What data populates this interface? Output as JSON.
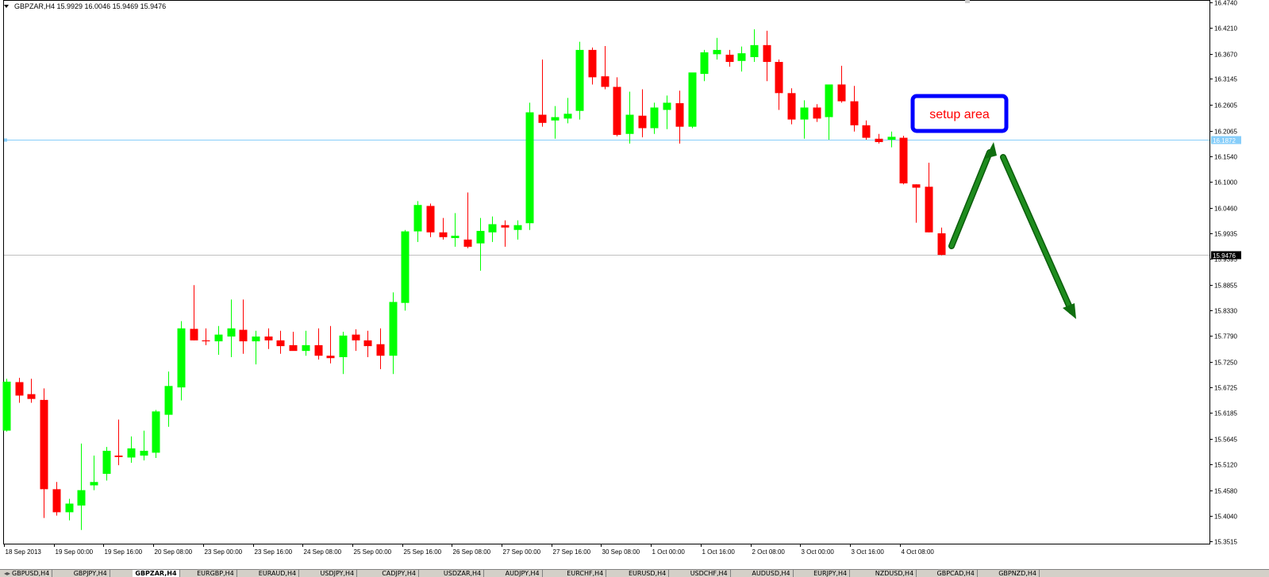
{
  "header": {
    "menu_icon": "triangle-down-icon",
    "text": "GBPZAR,H4  15.9929 16.0046 15.9469 15.9476"
  },
  "annotation": {
    "label": "setup area",
    "label_color": "#ff0000",
    "box_border_color": "#0000ff",
    "arrow_color": "#107a10"
  },
  "colors": {
    "bull": "#00ff00",
    "bear": "#ff0000",
    "resistance_line": "#87cefa",
    "bid_line": "#c0c0c0",
    "axis": "#000000",
    "axis_text": "#000000"
  },
  "chart_data": {
    "type": "candlestick",
    "symbol": "GBPZAR",
    "timeframe": "H4",
    "ohlc_header": {
      "open": 15.9929,
      "high": 16.0046,
      "low": 15.9469,
      "close": 15.9476
    },
    "ylim": [
      15.3515,
      16.474
    ],
    "y_ticks": [
      "16.4740",
      "16.4210",
      "16.3670",
      "16.3145",
      "16.2605",
      "16.2065",
      "16.1540",
      "16.1000",
      "16.0460",
      "15.9935",
      "15.9395",
      "15.8855",
      "15.8330",
      "15.7790",
      "15.7250",
      "15.6725",
      "15.6185",
      "15.5645",
      "15.5120",
      "15.4580",
      "15.4040",
      "15.3515"
    ],
    "x_labels": [
      "18 Sep 2013",
      "19 Sep 00:00",
      "19 Sep 16:00",
      "20 Sep 08:00",
      "23 Sep 00:00",
      "23 Sep 16:00",
      "24 Sep 08:00",
      "25 Sep 00:00",
      "25 Sep 16:00",
      "26 Sep 08:00",
      "27 Sep 00:00",
      "27 Sep 16:00",
      "30 Sep 08:00",
      "1 Oct 00:00",
      "1 Oct 16:00",
      "2 Oct 08:00",
      "3 Oct 00:00",
      "3 Oct 16:00",
      "4 Oct 08:00"
    ],
    "horizontal_lines": [
      {
        "name": "level",
        "value": 16.1872,
        "label": "16.1872"
      },
      {
        "name": "bid",
        "value": 15.9476,
        "label": "15.9476"
      }
    ],
    "candles": [
      [
        15.582,
        15.69,
        15.58,
        15.684
      ],
      [
        15.683,
        15.692,
        15.64,
        15.655
      ],
      [
        15.658,
        15.69,
        15.64,
        15.648
      ],
      [
        15.646,
        15.67,
        15.4,
        15.46
      ],
      [
        15.46,
        15.475,
        15.405,
        15.412
      ],
      [
        15.412,
        15.44,
        15.395,
        15.43
      ],
      [
        15.426,
        15.555,
        15.375,
        15.458
      ],
      [
        15.468,
        15.53,
        15.458,
        15.475
      ],
      [
        15.492,
        15.548,
        15.478,
        15.54
      ],
      [
        15.53,
        15.605,
        15.51,
        15.527
      ],
      [
        15.526,
        15.57,
        15.515,
        15.545
      ],
      [
        15.53,
        15.582,
        15.52,
        15.54
      ],
      [
        15.536,
        15.625,
        15.525,
        15.622
      ],
      [
        15.615,
        15.705,
        15.59,
        15.675
      ],
      [
        15.672,
        15.81,
        15.645,
        15.795
      ],
      [
        15.794,
        15.885,
        15.77,
        15.77
      ],
      [
        15.77,
        15.795,
        15.76,
        15.768
      ],
      [
        15.768,
        15.8,
        15.74,
        15.782
      ],
      [
        15.778,
        15.855,
        15.735,
        15.795
      ],
      [
        15.792,
        15.855,
        15.742,
        15.768
      ],
      [
        15.768,
        15.79,
        15.72,
        15.778
      ],
      [
        15.778,
        15.795,
        15.752,
        15.77
      ],
      [
        15.77,
        15.79,
        15.742,
        15.758
      ],
      [
        15.76,
        15.788,
        15.75,
        15.748
      ],
      [
        15.748,
        15.79,
        15.738,
        15.76
      ],
      [
        15.76,
        15.795,
        15.73,
        15.738
      ],
      [
        15.738,
        15.8,
        15.722,
        15.733
      ],
      [
        15.735,
        15.788,
        15.7,
        15.78
      ],
      [
        15.782,
        15.793,
        15.748,
        15.77
      ],
      [
        15.77,
        15.79,
        15.735,
        15.758
      ],
      [
        15.762,
        15.795,
        15.71,
        15.738
      ],
      [
        15.738,
        15.87,
        15.7,
        15.85
      ],
      [
        15.848,
        16.0,
        15.832,
        15.997
      ],
      [
        15.997,
        16.06,
        15.975,
        16.052
      ],
      [
        16.05,
        16.055,
        15.985,
        15.995
      ],
      [
        15.995,
        16.025,
        15.98,
        15.985
      ],
      [
        15.983,
        16.035,
        15.965,
        15.988
      ],
      [
        15.98,
        16.078,
        15.962,
        15.965
      ],
      [
        15.972,
        16.025,
        15.915,
        15.998
      ],
      [
        15.995,
        16.028,
        15.975,
        16.012
      ],
      [
        16.01,
        16.02,
        15.965,
        16.005
      ],
      [
        16.0,
        16.02,
        15.98,
        16.01
      ],
      [
        16.014,
        16.265,
        16.0,
        16.245
      ],
      [
        16.24,
        16.355,
        16.215,
        16.223
      ],
      [
        16.228,
        16.258,
        16.19,
        16.235
      ],
      [
        16.232,
        16.275,
        16.222,
        16.242
      ],
      [
        16.248,
        16.392,
        16.23,
        16.375
      ],
      [
        16.375,
        16.38,
        16.303,
        16.318
      ],
      [
        16.32,
        16.383,
        16.293,
        16.298
      ],
      [
        16.298,
        16.318,
        16.195,
        16.198
      ],
      [
        16.2,
        16.288,
        16.18,
        16.24
      ],
      [
        16.238,
        16.293,
        16.193,
        16.212
      ],
      [
        16.212,
        16.265,
        16.2,
        16.255
      ],
      [
        16.25,
        16.28,
        16.21,
        16.265
      ],
      [
        16.264,
        16.29,
        16.18,
        16.215
      ],
      [
        16.215,
        16.32,
        16.212,
        16.328
      ],
      [
        16.325,
        16.375,
        16.31,
        16.37
      ],
      [
        16.366,
        16.4,
        16.355,
        16.375
      ],
      [
        16.365,
        16.375,
        16.34,
        16.35
      ],
      [
        16.352,
        16.382,
        16.33,
        16.368
      ],
      [
        16.36,
        16.418,
        16.35,
        16.385
      ],
      [
        16.385,
        16.415,
        16.31,
        16.35
      ],
      [
        16.35,
        16.355,
        16.25,
        16.285
      ],
      [
        16.285,
        16.295,
        16.22,
        16.23
      ],
      [
        16.23,
        16.27,
        16.19,
        16.255
      ],
      [
        16.255,
        16.262,
        16.225,
        16.232
      ],
      [
        16.235,
        16.3,
        16.188,
        16.303
      ],
      [
        16.303,
        16.342,
        16.265,
        16.268
      ],
      [
        16.268,
        16.3,
        16.205,
        16.218
      ],
      [
        16.218,
        16.228,
        16.188,
        16.192
      ],
      [
        16.19,
        16.2,
        16.18,
        16.183
      ],
      [
        16.188,
        16.205,
        16.172,
        16.194
      ],
      [
        16.192,
        16.196,
        16.095,
        16.097
      ],
      [
        16.095,
        16.095,
        16.015,
        16.088
      ],
      [
        16.09,
        16.14,
        15.995,
        15.995
      ],
      [
        15.993,
        16.005,
        15.947,
        15.948
      ]
    ]
  },
  "tabs": [
    "GBPUSD,H4",
    "GBPJPY,H4",
    "GBPZAR,H4",
    "EURGBP,H4",
    "EURAUD,H4",
    "USDJPY,H4",
    "CADJPY,H4",
    "USDZAR,H4",
    "AUDJPY,H4",
    "EURCHF,H4",
    "EURUSD,H4",
    "USDCHF,H4",
    "AUDUSD,H4",
    "EURJPY,H4",
    "NZDUSD,H4",
    "GBPCAD,H4",
    "GBPNZD,H4"
  ],
  "active_tab": 2
}
